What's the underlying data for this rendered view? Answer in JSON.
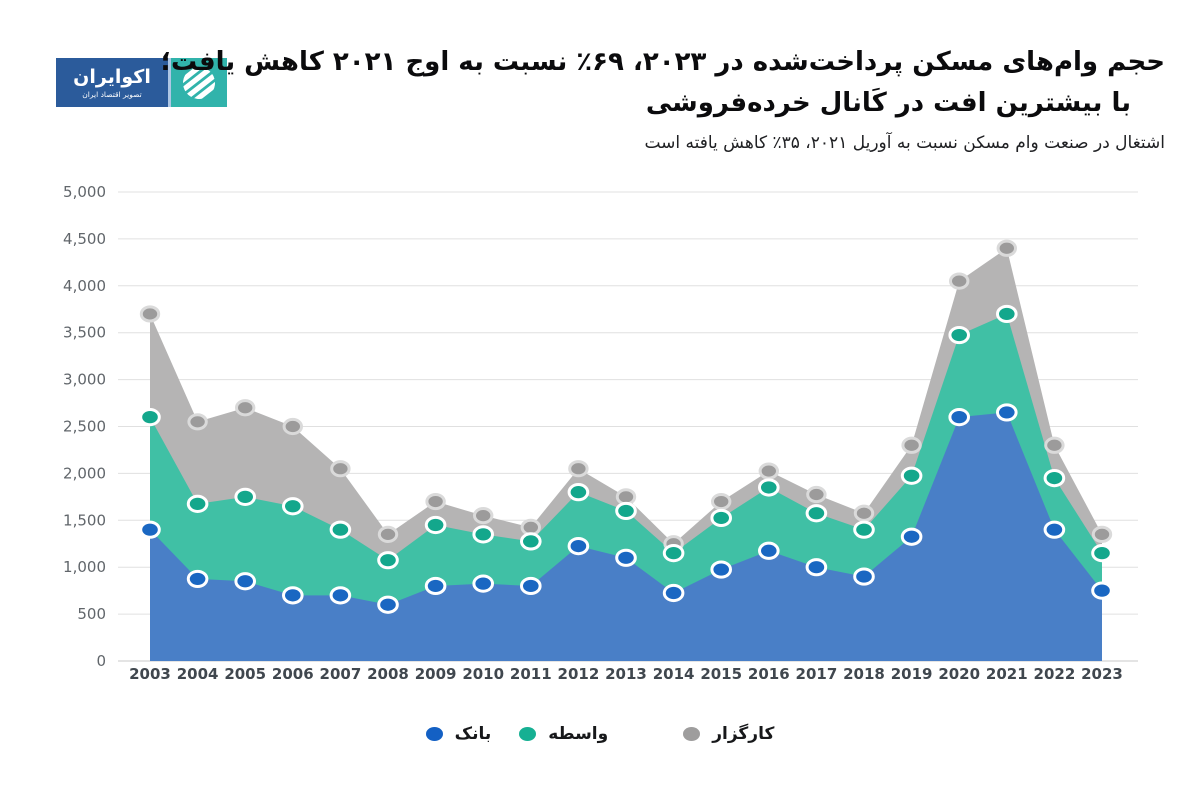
{
  "logo": {
    "brand": "اکوایران",
    "tagline": "تصویر اقتصاد ایران",
    "navy_color": "#2b5b9b",
    "teal_color": "#31b3ab"
  },
  "header": {
    "title_line1": "حجم وام‌های مسکن پرداخت‌شده در ۲۰۲۳، ۶۹٪ نسبت به اوج ۲۰۲۱ کاهش یافت؛",
    "title_line2": "با بیشترین افت در کَانال خرده‌فروشی",
    "subtitle": "اشتغال در صنعت وام مسکن نسبت به آوریل ۲۰۲۱، ۳۵٪ کاهش یافته است"
  },
  "chart_data": {
    "type": "area",
    "x": [
      2003,
      2004,
      2005,
      2006,
      2007,
      2008,
      2009,
      2010,
      2011,
      2012,
      2013,
      2014,
      2015,
      2016,
      2017,
      2018,
      2019,
      2020,
      2021,
      2022,
      2023
    ],
    "series": [
      {
        "name": "کارگزار",
        "area_color": "#b5b4b4",
        "marker_color": "#9c9b9b",
        "marker_ring": "#dadada",
        "values": [
          3700,
          2550,
          2700,
          2500,
          2050,
          1350,
          1700,
          1550,
          1425,
          2050,
          1750,
          1250,
          1700,
          2025,
          1775,
          1575,
          2300,
          4050,
          4400,
          2300,
          1350
        ]
      },
      {
        "name": "واسطه",
        "area_color": "#40c0a5",
        "marker_color": "#13a78c",
        "marker_ring": "#ffffff",
        "values": [
          2600,
          1675,
          1750,
          1650,
          1400,
          1075,
          1450,
          1350,
          1275,
          1800,
          1600,
          1150,
          1525,
          1850,
          1575,
          1400,
          1975,
          3475,
          3700,
          1950,
          1150
        ]
      },
      {
        "name": "بانک",
        "area_color": "#497fc7",
        "marker_color": "#1a67c2",
        "marker_ring": "#ffffff",
        "values": [
          1400,
          875,
          850,
          700,
          700,
          600,
          800,
          825,
          800,
          1225,
          1100,
          725,
          975,
          1175,
          1000,
          900,
          1325,
          2600,
          2650,
          1400,
          750
        ]
      }
    ],
    "ylim": [
      0,
      5000
    ],
    "ytick_step": 500,
    "ytick_labels": [
      "0",
      "500",
      "1,000",
      "1,500",
      "2,000",
      "2,500",
      "3,000",
      "3,500",
      "4,000",
      "4,500",
      "5,000"
    ],
    "grid": true,
    "legend_position": "bottom"
  },
  "legend": {
    "items": [
      {
        "label": "بانک",
        "color": "#1360c4"
      },
      {
        "label": "واسطه",
        "color": "#16b093"
      },
      {
        "label": "کارگزار",
        "color": "#9e9d9d"
      }
    ]
  }
}
